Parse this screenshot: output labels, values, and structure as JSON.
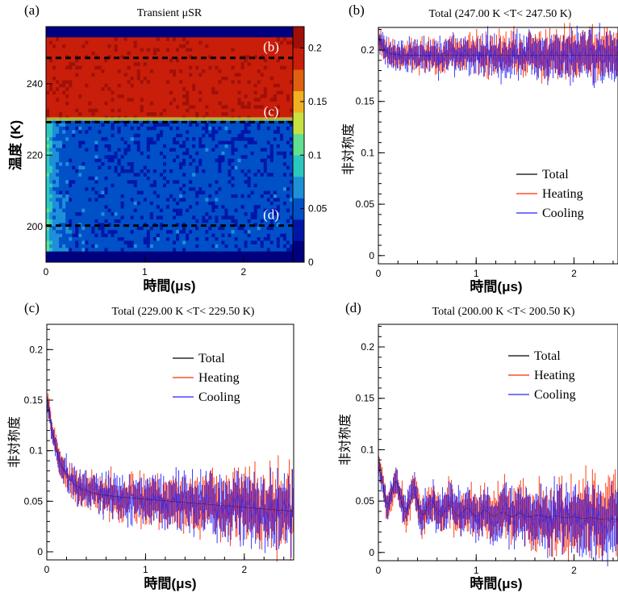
{
  "chart_data": [
    {
      "id": "a",
      "type": "heatmap",
      "panel_label": "(a)",
      "title": "Transient μSR",
      "xlabel": "時間(μs)",
      "ylabel": "温度 (K)",
      "xlim": [
        0,
        2.5
      ],
      "ylim": [
        190,
        256
      ],
      "x_ticks": [
        0,
        1,
        2
      ],
      "y_ticks": [
        200,
        220,
        240
      ],
      "colorbar": {
        "range": [
          0,
          0.22
        ],
        "ticks": [
          0,
          0.05,
          0.1,
          0.15,
          0.2
        ]
      },
      "colorscale": [
        "#00007f",
        "#0016a8",
        "#0050c8",
        "#1d90d8",
        "#2cc8c0",
        "#60e090",
        "#c8e040",
        "#f0b020",
        "#e06010",
        "#c81e0a",
        "#a01008"
      ],
      "regions": [
        {
          "t_from": 192.0,
          "t_to": 193.5,
          "value": 0.0
        },
        {
          "t_from": 193.5,
          "t_to": 230.0,
          "value": 0.045
        },
        {
          "t_from": 230.0,
          "t_to": 253.5,
          "value": 0.195
        },
        {
          "t_from": 253.5,
          "t_to": 256.0,
          "value": 0.0
        }
      ],
      "cuts": [
        {
          "label": "(b)",
          "T": 247.25
        },
        {
          "label": "(c)",
          "T": 229.25
        },
        {
          "label": "(d)",
          "T": 200.25
        }
      ]
    },
    {
      "id": "b",
      "type": "line",
      "panel_label": "(b)",
      "title": "Total (247.00 K <T< 247.50 K)",
      "xlabel": "時間(μs)",
      "ylabel": "非対称度",
      "xlim": [
        0,
        2.45
      ],
      "ylim": [
        -0.008,
        0.222
      ],
      "x_ticks": [
        0,
        1,
        2
      ],
      "y_ticks": [
        0,
        0.05,
        0.1,
        0.15,
        0.2
      ],
      "legend": [
        "Total",
        "Heating",
        "Cooling"
      ],
      "model": {
        "base": 0.195,
        "amp0": 0.02,
        "decay": 0.05,
        "osc_amp": 0.0,
        "osc_freq": 5.5,
        "noise": 0.006,
        "noise_growth": 0.4
      },
      "series": [
        {
          "name": "Total",
          "color": "#000000"
        },
        {
          "name": "Heating",
          "color": "#ff2a00"
        },
        {
          "name": "Cooling",
          "color": "#2525ff"
        }
      ]
    },
    {
      "id": "c",
      "type": "line",
      "panel_label": "(c)",
      "title": "Total (229.00 K <T< 229.50 K)",
      "xlabel": "時間(μs)",
      "ylabel": "非対称度",
      "xlim": [
        0,
        2.5
      ],
      "ylim": [
        -0.008,
        0.225
      ],
      "x_ticks": [
        0,
        1,
        2
      ],
      "y_ticks": [
        0,
        0.05,
        0.1,
        0.15,
        0.2
      ],
      "legend": [
        "Total",
        "Heating",
        "Cooling"
      ],
      "model": {
        "base": 0.06,
        "slope": -0.008,
        "amp0": 0.095,
        "decay": 0.12,
        "osc_amp": 0.0,
        "osc_freq": 5.5,
        "noise": 0.006,
        "noise_growth": 0.8
      },
      "series": [
        {
          "name": "Total",
          "color": "#000000"
        },
        {
          "name": "Heating",
          "color": "#ff2a00"
        },
        {
          "name": "Cooling",
          "color": "#2525ff"
        }
      ]
    },
    {
      "id": "d",
      "type": "line",
      "panel_label": "(d)",
      "title": "Total (200.00 K <T< 200.50 K)",
      "xlabel": "時間(μs)",
      "ylabel": "非対称度",
      "xlim": [
        0,
        2.45
      ],
      "ylim": [
        -0.008,
        0.222
      ],
      "x_ticks": [
        0,
        1,
        2
      ],
      "y_ticks": [
        0,
        0.05,
        0.1,
        0.15,
        0.2
      ],
      "legend": [
        "Total",
        "Heating",
        "Cooling"
      ],
      "model": {
        "base": 0.042,
        "slope": -0.004,
        "amp0": 0.03,
        "decay": 0.25,
        "osc_amp": 0.018,
        "osc_freq": 5.5,
        "noise": 0.006,
        "noise_growth": 0.8
      },
      "series": [
        {
          "name": "Total",
          "color": "#000000"
        },
        {
          "name": "Heating",
          "color": "#ff2a00"
        },
        {
          "name": "Cooling",
          "color": "#2525ff"
        }
      ]
    }
  ]
}
